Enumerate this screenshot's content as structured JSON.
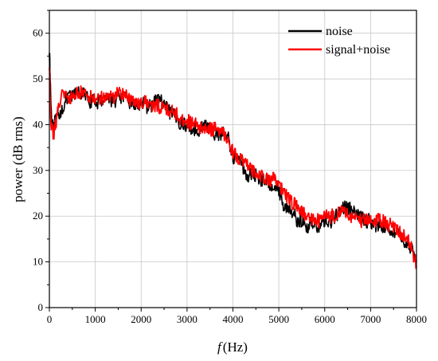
{
  "chart_data": {
    "type": "line",
    "xlabel_var": "f",
    "xlabel_unit": "(Hz)",
    "ylabel": "power (dB rms)",
    "xlim": [
      0,
      8000
    ],
    "ylim": [
      0,
      65
    ],
    "xticks": [
      0,
      1000,
      2000,
      3000,
      4000,
      5000,
      6000,
      7000,
      8000
    ],
    "yticks": [
      0,
      10,
      20,
      30,
      40,
      50,
      60
    ],
    "grid": true,
    "legend_position": "top-right",
    "series": [
      {
        "name": "noise",
        "color": "#000000",
        "x": [
          0,
          20,
          50,
          100,
          150,
          200,
          300,
          400,
          500,
          600,
          700,
          800,
          900,
          1000,
          1100,
          1200,
          1300,
          1400,
          1500,
          1600,
          1700,
          1800,
          1900,
          2000,
          2100,
          2200,
          2300,
          2400,
          2500,
          2600,
          2700,
          2800,
          2900,
          3000,
          3100,
          3200,
          3300,
          3400,
          3500,
          3600,
          3700,
          3800,
          3900,
          4000,
          4100,
          4200,
          4300,
          4400,
          4500,
          4600,
          4700,
          4800,
          4900,
          5000,
          5100,
          5200,
          5300,
          5400,
          5500,
          5600,
          5700,
          5800,
          5900,
          6000,
          6100,
          6200,
          6300,
          6400,
          6500,
          6600,
          6700,
          6800,
          6900,
          7000,
          7100,
          7200,
          7300,
          7400,
          7500,
          7600,
          7700,
          7800,
          7900,
          8000
        ],
        "y": [
          57,
          49,
          41,
          40,
          41,
          42,
          44,
          46,
          46,
          47,
          47,
          46,
          45,
          45,
          45,
          46,
          46,
          45,
          46,
          46,
          45,
          45,
          44,
          45,
          44,
          44,
          45,
          46,
          44,
          43,
          42,
          41,
          40,
          40,
          39,
          39,
          39,
          40,
          39,
          38,
          38,
          38,
          37,
          33,
          33,
          31,
          29,
          29,
          29,
          28,
          28,
          27,
          27,
          26,
          22,
          22,
          21,
          19,
          19,
          17,
          19,
          18,
          18,
          19,
          19,
          19,
          21,
          22,
          22,
          21,
          20,
          20,
          19,
          19,
          18,
          18,
          18,
          17,
          17,
          16,
          15,
          14,
          13,
          10
        ]
      },
      {
        "name": "signal+noise",
        "color": "#ff0000",
        "x": [
          0,
          20,
          50,
          100,
          150,
          200,
          300,
          400,
          500,
          600,
          700,
          800,
          900,
          1000,
          1100,
          1200,
          1300,
          1400,
          1500,
          1600,
          1700,
          1800,
          1900,
          2000,
          2100,
          2200,
          2300,
          2400,
          2500,
          2600,
          2700,
          2800,
          2900,
          3000,
          3100,
          3200,
          3300,
          3400,
          3500,
          3600,
          3700,
          3800,
          3900,
          4000,
          4100,
          4200,
          4300,
          4400,
          4500,
          4600,
          4700,
          4800,
          4900,
          5000,
          5100,
          5200,
          5300,
          5400,
          5500,
          5600,
          5700,
          5800,
          5900,
          6000,
          6100,
          6200,
          6300,
          6400,
          6500,
          6600,
          6700,
          6800,
          6900,
          7000,
          7100,
          7200,
          7300,
          7400,
          7500,
          7600,
          7700,
          7800,
          7900,
          8000
        ],
        "y": [
          53,
          44,
          39,
          38,
          41,
          44,
          48,
          45,
          46,
          47,
          47,
          47,
          46,
          46,
          46,
          46,
          46,
          46,
          47,
          47,
          46,
          45,
          45,
          45,
          45,
          44,
          44,
          44,
          44,
          43,
          43,
          42,
          41,
          41,
          40,
          40,
          39,
          39,
          39,
          39,
          39,
          38,
          37,
          34,
          33,
          32,
          31,
          30,
          30,
          29,
          28,
          28,
          28,
          27,
          25,
          24,
          23,
          22,
          21,
          20,
          19,
          19,
          19,
          20,
          20,
          20,
          21,
          21,
          20,
          20,
          20,
          19,
          19,
          19,
          19,
          19,
          19,
          18,
          18,
          17,
          16,
          15,
          13,
          9
        ]
      }
    ]
  }
}
